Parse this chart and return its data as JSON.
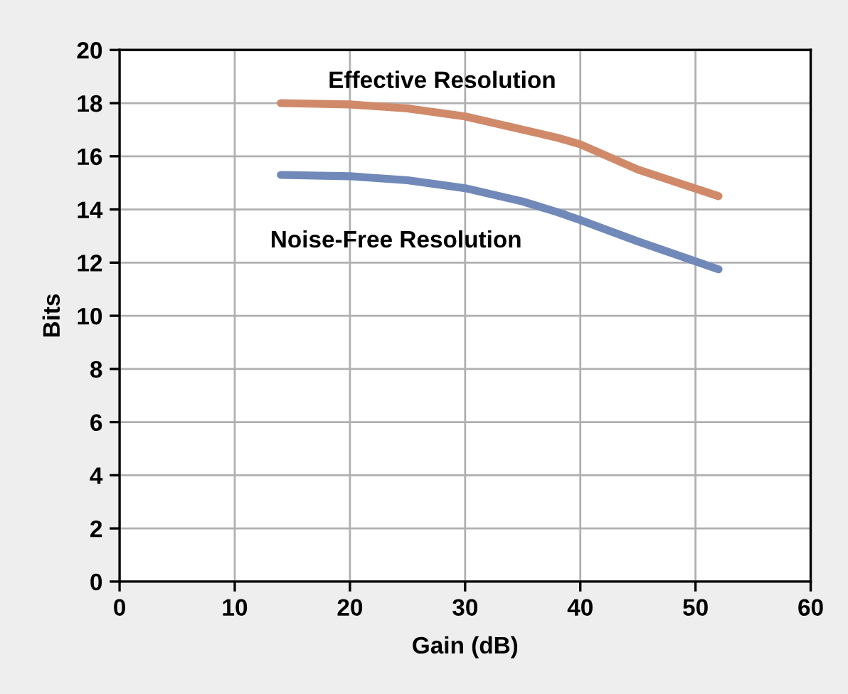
{
  "chart_data": {
    "type": "line",
    "xlabel": "Gain (dB)",
    "ylabel": "Bits",
    "series": [
      {
        "name": "Effective Resolution",
        "color": "#d08a6a",
        "x": [
          14,
          20,
          25,
          30,
          35,
          38,
          40,
          45,
          52
        ],
        "values": [
          18.0,
          17.95,
          17.8,
          17.5,
          17.0,
          16.7,
          16.45,
          15.5,
          14.5
        ]
      },
      {
        "name": "Noise-Free Resolution",
        "color": "#7189b9",
        "x": [
          14,
          20,
          25,
          30,
          35,
          38,
          40,
          45,
          52
        ],
        "values": [
          15.3,
          15.25,
          15.1,
          14.8,
          14.3,
          13.9,
          13.6,
          12.8,
          11.75
        ]
      }
    ],
    "xlim": [
      0,
      60
    ],
    "xticks": [
      0,
      10,
      20,
      30,
      40,
      50,
      60
    ],
    "ylim": [
      0,
      20
    ],
    "yticks": [
      0,
      2,
      4,
      6,
      8,
      10,
      12,
      14,
      16,
      18,
      20
    ],
    "grid": true,
    "legend": false,
    "marker": "none",
    "line_style": "solid"
  }
}
